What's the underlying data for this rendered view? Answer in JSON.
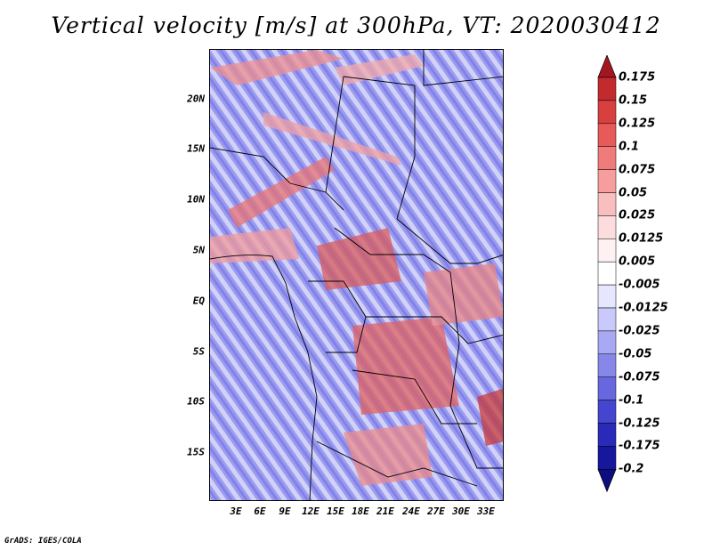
{
  "title": "Vertical velocity [m/s] at 300hPa, VT: 2020030412",
  "footer": "GrADS: IGES/COLA",
  "map": {
    "lat_labels": [
      "20N",
      "15N",
      "10N",
      "5N",
      "EQ",
      "5S",
      "10S",
      "15S"
    ],
    "lon_labels": [
      "3E",
      "6E",
      "9E",
      "12E",
      "15E",
      "18E",
      "21E",
      "24E",
      "27E",
      "30E",
      "33E"
    ]
  },
  "colorbar": {
    "levels": [
      "0.175",
      "0.15",
      "0.125",
      "0.1",
      "0.075",
      "0.05",
      "0.025",
      "0.0125",
      "0.005",
      "-0.005",
      "-0.0125",
      "-0.025",
      "-0.05",
      "-0.075",
      "-0.1",
      "-0.125",
      "-0.175",
      "-0.2"
    ],
    "colors": [
      "#a51623",
      "#c32a2e",
      "#d84040",
      "#e65a59",
      "#ef7b7a",
      "#f59e9d",
      "#f9bfbf",
      "#fcdcdc",
      "#fff1f1",
      "#ffffff",
      "#e6e6ff",
      "#c9c9fb",
      "#a9a9f3",
      "#8787ea",
      "#6767df",
      "#4545cf",
      "#2a2ab9",
      "#17179e",
      "#0d0d80"
    ]
  }
}
